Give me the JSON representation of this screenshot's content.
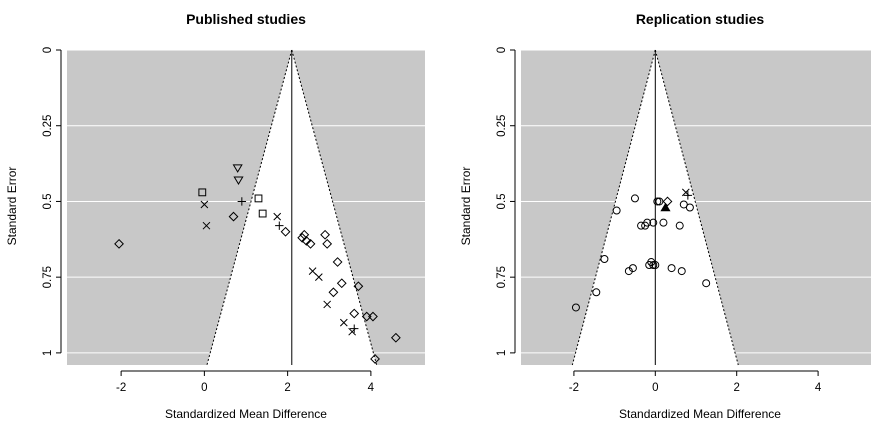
{
  "chart_data": [
    {
      "type": "scatter",
      "subtype": "funnel-plot",
      "title": "Published studies",
      "xlabel": "Standardized Mean Difference",
      "ylabel": "Standard Error",
      "xlim": [
        -3.3,
        5.3
      ],
      "ylim": [
        1.04,
        0
      ],
      "y_reversed": true,
      "xticks": [
        -2,
        0,
        2,
        4
      ],
      "yticks": [
        0,
        0.25,
        0.5,
        0.75,
        1
      ],
      "ytick_labels": [
        "0",
        "0.25",
        "0.5",
        "0.75",
        "1"
      ],
      "background_color": "#c8c8c8",
      "funnel_color": "#ffffff",
      "gridlines": "horizontal, white",
      "reference_line_x": 2.1,
      "funnel_z": 1.96,
      "series": [
        {
          "marker": "diamond",
          "x": [
            -2.05,
            0.7,
            1.95,
            2.35,
            2.4,
            2.45,
            2.55,
            2.9,
            2.95,
            3.2,
            3.1,
            3.3,
            3.7,
            3.6,
            3.9,
            4.05,
            4.1,
            4.6
          ],
          "y": [
            0.64,
            0.55,
            0.6,
            0.62,
            0.61,
            0.63,
            0.64,
            0.61,
            0.64,
            0.7,
            0.8,
            0.77,
            0.78,
            0.87,
            0.88,
            0.88,
            1.02,
            0.95
          ]
        },
        {
          "marker": "cross",
          "x": [
            0.0,
            0.05,
            1.75,
            2.6,
            2.75,
            3.35,
            2.95,
            3.55
          ],
          "y": [
            0.51,
            0.58,
            0.55,
            0.73,
            0.75,
            0.9,
            0.84,
            0.93
          ]
        },
        {
          "marker": "plus",
          "x": [
            0.9,
            1.8,
            3.6
          ],
          "y": [
            0.5,
            0.58,
            0.92
          ]
        },
        {
          "marker": "square",
          "x": [
            -0.05,
            1.3,
            1.4
          ],
          "y": [
            0.47,
            0.49,
            0.54
          ]
        },
        {
          "marker": "triangle-down",
          "x": [
            0.8,
            0.82
          ],
          "y": [
            0.39,
            0.43
          ]
        }
      ]
    },
    {
      "type": "scatter",
      "subtype": "funnel-plot",
      "title": "Replication studies",
      "xlabel": "Standardized Mean Difference",
      "ylabel": "Standard Error",
      "xlim": [
        -3.3,
        5.3
      ],
      "ylim": [
        1.04,
        0
      ],
      "y_reversed": true,
      "xticks": [
        -2,
        0,
        2,
        4
      ],
      "yticks": [
        0,
        0.25,
        0.5,
        0.75,
        1
      ],
      "ytick_labels": [
        "0",
        "0.25",
        "0.5",
        "0.75",
        "1"
      ],
      "background_color": "#c8c8c8",
      "funnel_color": "#ffffff",
      "gridlines": "horizontal, white",
      "reference_line_x": 0.0,
      "funnel_z": 1.96,
      "series": [
        {
          "marker": "circle",
          "x": [
            -1.95,
            -1.45,
            -1.25,
            -0.95,
            -0.5,
            -0.35,
            -0.25,
            -0.2,
            -0.05,
            -0.05,
            -0.1,
            -0.65,
            -0.55,
            -0.15,
            0.0,
            0.05,
            0.1,
            0.2,
            0.4,
            0.6,
            0.65,
            0.85,
            1.25,
            0.7
          ],
          "y": [
            0.85,
            0.8,
            0.69,
            0.53,
            0.49,
            0.58,
            0.58,
            0.57,
            0.57,
            0.71,
            0.7,
            0.73,
            0.72,
            0.71,
            0.71,
            0.5,
            0.5,
            0.57,
            0.72,
            0.58,
            0.73,
            0.52,
            0.77,
            0.51
          ]
        },
        {
          "marker": "cross",
          "x": [
            0.75
          ],
          "y": [
            0.47
          ]
        },
        {
          "marker": "plus",
          "x": [
            0.8
          ],
          "y": [
            0.48
          ]
        },
        {
          "marker": "diamond",
          "x": [
            0.3
          ],
          "y": [
            0.5
          ]
        },
        {
          "marker": "triangle-up-filled",
          "x": [
            0.25
          ],
          "y": [
            0.52
          ]
        }
      ]
    }
  ]
}
